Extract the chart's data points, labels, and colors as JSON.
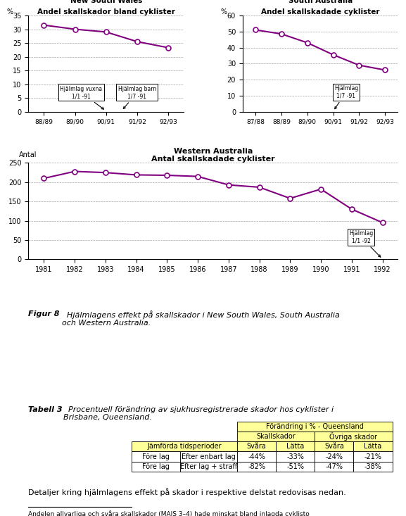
{
  "nsw": {
    "title1": "New South Wales",
    "title2": "Andel skallskador bland cyklister",
    "ylabel": "%",
    "x_labels": [
      "88/89",
      "89/90",
      "90/91",
      "91/92",
      "92/93"
    ],
    "y_values": [
      31.5,
      30.0,
      29.0,
      25.5,
      23.3
    ],
    "ylim": [
      0,
      35
    ],
    "yticks": [
      0,
      5,
      10,
      15,
      20,
      25,
      30,
      35
    ],
    "annotation1_text": "Hjälmlag vuxna\n1/1 -91",
    "annotation2_text": "Hjälmlag barn\n1/7 -91"
  },
  "sa": {
    "title1": "South Australia",
    "title2": "Andel skallskadade cyklister",
    "ylabel": "%",
    "x_labels": [
      "87/88",
      "88/89",
      "89/90",
      "90/91",
      "91/92",
      "92/93"
    ],
    "y_values": [
      51.0,
      48.5,
      43.0,
      35.5,
      29.0,
      26.0
    ],
    "ylim": [
      0,
      60
    ],
    "yticks": [
      0,
      10,
      20,
      30,
      40,
      50,
      60
    ],
    "annotation1_text": "Hjälmlag\n1/7 -91"
  },
  "wa": {
    "title1": "Western Australia",
    "title2": "Antal skallskadade cyklister",
    "ylabel": "Antal",
    "x_labels": [
      "1981",
      "1982",
      "1983",
      "1984",
      "1985",
      "1986",
      "1987",
      "1988",
      "1989",
      "1990",
      "1991",
      "1992"
    ],
    "x_indices": [
      0,
      1,
      2,
      3,
      4,
      5,
      6,
      7,
      8,
      9,
      10,
      11
    ],
    "y_values": [
      210,
      228,
      225,
      219,
      218,
      215,
      193,
      187,
      158,
      182,
      130,
      95
    ],
    "ylim": [
      0,
      250
    ],
    "yticks": [
      0,
      50,
      100,
      150,
      200,
      250
    ],
    "annotation1_text": "Hjälmlag\n1/1 -92"
  },
  "line_color": "#800080",
  "marker_color": "white",
  "marker_edge_color": "#800080",
  "fig_caption_bold": "Figur 8",
  "fig_caption_italic": "  Hjälmlagens effekt på skallskador i New South Wales, South Australia\noch Western Australia.",
  "table_title_bold": "Tabell 3",
  "table_title_italic": "  Procentuell förändring av sjukhusregistrerade skador hos cyklister i\nBrisbane, Queensland.",
  "table_header1": "Förändring i % - Queensland",
  "table_header2a": "Skallskador",
  "table_header2b": "Övriga skador",
  "table_col_headers": [
    "Svåra",
    "Lätta",
    "Svåra",
    "Lätta"
  ],
  "table_row0_label": "Jämförda tidsperioder",
  "table_row1_label1": "Före lag",
  "table_row1_label2": "Efter enbart lag",
  "table_row2_label1": "Före lag",
  "table_row2_label2": "Efter lag + straff",
  "table_data": [
    [
      "-44%",
      "-33%",
      "-24%",
      "-21%"
    ],
    [
      "-82%",
      "-51%",
      "-47%",
      "-38%"
    ]
  ],
  "footer_text": "Detaljer kring hjälmlagens effekt på skador i respektive delstat redovisas nedan.",
  "footnote_text": "Andelen allvarliga och svåra skallskador (MAIS 3–4) hade minskat bland inlagda cyklisto",
  "header_bg": "#FFFF99",
  "white_bg": "white",
  "border_color": "black"
}
